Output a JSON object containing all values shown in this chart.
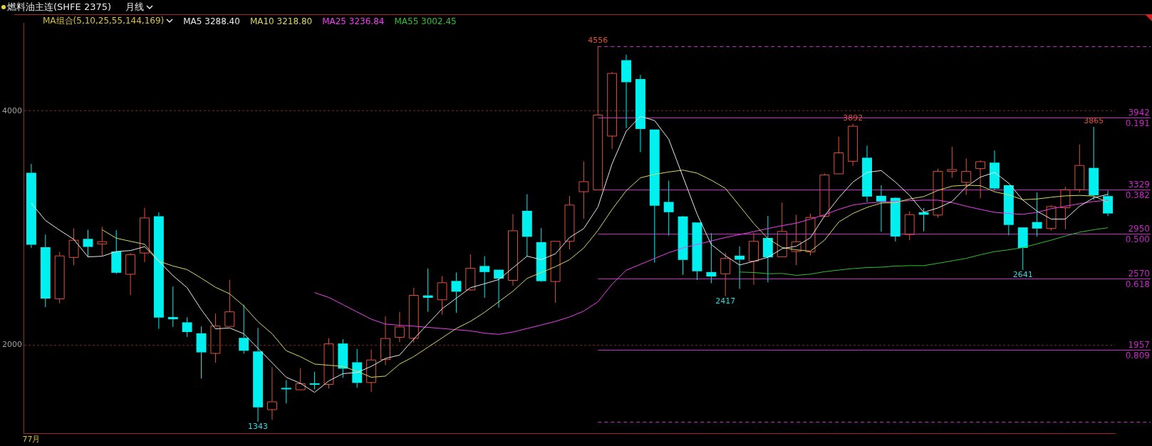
{
  "chart_data": {
    "type": "candlestick",
    "title": "燃料油主连(SHFE 2375)",
    "subtitle": "月线",
    "legend_title": "MA组合(5,10,25,55,144,169)",
    "legend": "top left",
    "grid": "y",
    "categories": [
      "77月",
      null,
      null,
      null,
      null,
      null,
      null,
      null,
      null,
      null,
      null,
      null,
      null,
      null,
      null,
      null,
      null,
      null,
      null,
      null,
      null,
      null,
      null,
      null,
      null,
      null,
      null,
      null,
      null,
      null,
      null,
      null,
      null,
      null,
      null,
      null,
      null,
      null,
      null,
      null,
      null,
      null,
      null,
      null,
      null,
      null,
      null,
      null,
      null,
      null,
      null,
      null,
      null,
      null,
      null,
      null,
      null,
      null,
      null,
      null,
      null,
      null,
      null,
      null,
      null,
      null,
      null,
      null,
      null,
      null,
      null,
      null,
      null,
      null,
      null,
      null,
      null
    ],
    "ohlc": [
      [
        3472,
        3548,
        2830,
        2857
      ],
      [
        2836,
        2944,
        2323,
        2397
      ],
      [
        2397,
        2795,
        2356,
        2764
      ],
      [
        2751,
        2996,
        2681,
        2898
      ],
      [
        2907,
        2985,
        2753,
        2838
      ],
      [
        2867,
        3010,
        2762,
        2886
      ],
      [
        2799,
        2981,
        2607,
        2617
      ],
      [
        2607,
        2785,
        2426,
        2774
      ],
      [
        2789,
        3172,
        2708,
        3089
      ],
      [
        3101,
        3134,
        2137,
        2234
      ],
      [
        2238,
        2499,
        2153,
        2219
      ],
      [
        2193,
        2236,
        2068,
        2110
      ],
      [
        2099,
        2157,
        1712,
        1936
      ],
      [
        1930,
        2267,
        1847,
        2164
      ],
      [
        2161,
        2557,
        2161,
        2286
      ],
      [
        2060,
        2344,
        1925,
        1950
      ],
      [
        1944,
        2145,
        1343,
        1466
      ],
      [
        1449,
        1810,
        1360,
        1516
      ],
      [
        1632,
        1698,
        1499,
        1623
      ],
      [
        1619,
        1801,
        1619,
        1671
      ],
      [
        1671,
        1770,
        1619,
        1660
      ],
      [
        1665,
        2058,
        1627,
        2012
      ],
      [
        2012,
        2048,
        1718,
        1797
      ],
      [
        1851,
        1965,
        1634,
        1675
      ],
      [
        1681,
        1961,
        1598,
        1874
      ],
      [
        1878,
        2244,
        1826,
        2058
      ],
      [
        2068,
        2282,
        2023,
        2157
      ],
      [
        2060,
        2489,
        2020,
        2427
      ],
      [
        2423,
        2653,
        2283,
        2403
      ],
      [
        2389,
        2589,
        2259,
        2535
      ],
      [
        2547,
        2619,
        2275,
        2455
      ],
      [
        2473,
        2775,
        2463,
        2659
      ],
      [
        2675,
        2759,
        2403,
        2623
      ],
      [
        2643,
        2643,
        2319,
        2567
      ],
      [
        2555,
        3119,
        2507,
        2979
      ],
      [
        3147,
        3289,
        2755,
        2925
      ],
      [
        2879,
        2999,
        2539,
        2545
      ],
      [
        2545,
        2889,
        2359,
        2889
      ],
      [
        2889,
        3273,
        2815,
        3199
      ],
      [
        3313,
        3569,
        3079,
        3399
      ],
      [
        3329,
        4556,
        3329,
        3969
      ],
      [
        3789,
        4335,
        3675,
        4325
      ],
      [
        4435,
        4483,
        3855,
        4247
      ],
      [
        4273,
        4309,
        3649,
        3847
      ],
      [
        3843,
        3843,
        2703,
        3191
      ],
      [
        3223,
        3405,
        2935,
        3135
      ],
      [
        3099,
        3103,
        2599,
        2727
      ],
      [
        3047,
        3047,
        2555,
        2629
      ],
      [
        2623,
        2955,
        2527,
        2585
      ],
      [
        2611,
        2789,
        2417,
        2743
      ],
      [
        2763,
        2843,
        2479,
        2729
      ],
      [
        2719,
        2959,
        2515,
        2889
      ],
      [
        2915,
        3103,
        2535,
        2749
      ],
      [
        2757,
        3217,
        2757,
        2974
      ],
      [
        2802,
        3113,
        2682,
        2885
      ],
      [
        2798,
        3123,
        2765,
        3093
      ],
      [
        3103,
        3466,
        3093,
        3456
      ],
      [
        3466,
        3781,
        3466,
        3646
      ],
      [
        3574,
        3892,
        3532,
        3874
      ],
      [
        3601,
        3704,
        3221,
        3269
      ],
      [
        3275,
        3366,
        2968,
        3227
      ],
      [
        3258,
        3263,
        2885,
        2927
      ],
      [
        2947,
        3144,
        2896,
        3117
      ],
      [
        3134,
        3171,
        2972,
        3113
      ],
      [
        3113,
        3507,
        3088,
        3487
      ],
      [
        3487,
        3694,
        3429,
        3503
      ],
      [
        3393,
        3594,
        3283,
        3487
      ],
      [
        3511,
        3580,
        3254,
        3570
      ],
      [
        3559,
        3663,
        3321,
        3337
      ],
      [
        3366,
        3366,
        2937,
        3026
      ],
      [
        3005,
        3005,
        2641,
        2829
      ],
      [
        3051,
        3304,
        2927,
        2995
      ],
      [
        2999,
        3196,
        2978,
        3186
      ],
      [
        3176,
        3352,
        2989,
        3331
      ],
      [
        3331,
        3715,
        3304,
        3538
      ],
      [
        3514,
        3865,
        3242,
        3279
      ],
      [
        3273,
        3321,
        3103,
        3124
      ]
    ],
    "colors": [
      "#00f0f0",
      "#00f0f0",
      "#e0503c",
      "#e0503c",
      "#00f0f0",
      "#e0503c",
      "#00f0f0",
      "#e0503c",
      "#e0503c",
      "#00f0f0",
      "#00f0f0",
      "#00f0f0",
      "#00f0f0",
      "#e0503c",
      "#e0503c",
      "#00f0f0",
      "#00f0f0",
      "#e0503c",
      "#00f0f0",
      "#e0503c",
      "#00f0f0",
      "#e0503c",
      "#00f0f0",
      "#00f0f0",
      "#e0503c",
      "#e0503c",
      "#e0503c",
      "#e0503c",
      "#00f0f0",
      "#e0503c",
      "#00f0f0",
      "#e0503c",
      "#00f0f0",
      "#00f0f0",
      "#e0503c",
      "#00f0f0",
      "#00f0f0",
      "#e0503c",
      "#e0503c",
      "#e0503c",
      "#e0503c",
      "#e0503c",
      "#00f0f0",
      "#00f0f0",
      "#00f0f0",
      "#00f0f0",
      "#00f0f0",
      "#00f0f0",
      "#00f0f0",
      "#e0503c",
      "#00f0f0",
      "#e0503c",
      "#00f0f0",
      "#e0503c",
      "#e0503c",
      "#e0503c",
      "#e0503c",
      "#e0503c",
      "#e0503c",
      "#00f0f0",
      "#00f0f0",
      "#00f0f0",
      "#e0503c",
      "#00f0f0",
      "#e0503c",
      "#e0503c",
      "#e0503c",
      "#e0503c",
      "#00f0f0",
      "#00f0f0",
      "#00f0f0",
      "#00f0f0",
      "#e0503c",
      "#e0503c",
      "#e0503c",
      "#00f0f0",
      "#00f0f0"
    ],
    "series": [
      {
        "type": "line",
        "name": "MA5 3288.40",
        "color": "#e8e8e8",
        "values": [
          3213,
          3064,
          2981,
          2903,
          2753,
          2758,
          2799,
          2807,
          2840,
          2716,
          2592,
          2489,
          2302,
          2137,
          2145,
          2095,
          1971,
          1847,
          1723,
          1671,
          1594,
          1692,
          1754,
          1764,
          1816,
          1884,
          1913,
          2050,
          2180,
          2309,
          2399,
          2489,
          2523,
          2559,
          2659,
          2759,
          2729,
          2779,
          2919,
          2995,
          3179,
          3549,
          3829,
          3955,
          3919,
          3759,
          3439,
          3119,
          2859,
          2763,
          2683,
          2715,
          2749,
          2823,
          2844,
          2916,
          3103,
          3258,
          3393,
          3476,
          3491,
          3393,
          3279,
          3134,
          3171,
          3227,
          3352,
          3435,
          3476,
          3383,
          3238,
          3144,
          3076,
          3076,
          3186,
          3258,
          3288
        ]
      },
      {
        "type": "line",
        "name": "MA10 3218.80",
        "color": "#d8d860",
        "values": [
          null,
          null,
          null,
          null,
          null,
          2985,
          2913,
          2886,
          2861,
          2716,
          2675,
          2644,
          2571,
          2493,
          2437,
          2333,
          2199,
          2095,
          1950,
          1899,
          1836,
          1826,
          1816,
          1774,
          1723,
          1733,
          1836,
          1900,
          1980,
          2060,
          2140,
          2201,
          2279,
          2369,
          2459,
          2569,
          2619,
          2669,
          2729,
          2829,
          2979,
          3159,
          3319,
          3429,
          3459,
          3479,
          3495,
          3469,
          3409,
          3339,
          3189,
          3039,
          2910,
          2833,
          2813,
          2802,
          2896,
          3051,
          3124,
          3176,
          3213,
          3217,
          3248,
          3269,
          3321,
          3358,
          3366,
          3362,
          3310,
          3283,
          3242,
          3248,
          3263,
          3275,
          3279,
          3273,
          3219
        ]
      },
      {
        "type": "line",
        "name": "MA25 3236.84",
        "color": "#f040f0",
        "values": [
          null,
          null,
          null,
          null,
          null,
          null,
          null,
          null,
          null,
          null,
          null,
          null,
          null,
          null,
          null,
          null,
          null,
          null,
          null,
          null,
          2447,
          2406,
          2344,
          2282,
          2220,
          2178,
          2168,
          2160,
          2150,
          2140,
          2130,
          2120,
          2100,
          2090,
          2110,
          2140,
          2170,
          2201,
          2239,
          2289,
          2369,
          2519,
          2639,
          2689,
          2739,
          2789,
          2829,
          2859,
          2889,
          2919,
          2943,
          2969,
          2995,
          3020,
          3041,
          3076,
          3113,
          3159,
          3196,
          3213,
          3221,
          3227,
          3234,
          3238,
          3238,
          3217,
          3186,
          3159,
          3134,
          3124,
          3117,
          3134,
          3165,
          3186,
          3207,
          3227,
          3237
        ]
      },
      {
        "type": "line",
        "name": "MA55 3002.45",
        "color": "#30c030",
        "values": [
          null,
          null,
          null,
          null,
          null,
          null,
          null,
          null,
          null,
          null,
          null,
          null,
          null,
          null,
          null,
          null,
          null,
          null,
          null,
          null,
          null,
          null,
          null,
          null,
          null,
          null,
          null,
          null,
          null,
          null,
          null,
          null,
          null,
          null,
          null,
          null,
          null,
          null,
          null,
          null,
          null,
          null,
          null,
          null,
          null,
          null,
          null,
          null,
          null,
          null,
          2623,
          2619,
          2609,
          2611,
          2595,
          2605,
          2626,
          2640,
          2653,
          2661,
          2665,
          2674,
          2678,
          2678,
          2698,
          2719,
          2740,
          2771,
          2798,
          2813,
          2833,
          2864,
          2896,
          2931,
          2964,
          2985,
          3002
        ]
      }
    ],
    "ylim": [
      1240,
      4755
    ],
    "yticks": [
      2000,
      4000
    ],
    "ref_lines": [
      {
        "axis": "y",
        "value": 4556,
        "label": null,
        "color": "#c828c8",
        "line_style": "dashed"
      },
      {
        "axis": "y",
        "value": 3942,
        "label": "3942",
        "color": "#c828c8",
        "line_style": "solid"
      },
      {
        "axis": "y",
        "value": 3329,
        "label": "3329",
        "color": "#c828c8",
        "line_style": "solid"
      },
      {
        "axis": "y",
        "value": 2950,
        "label": "2950",
        "color": "#c828c8",
        "line_style": "solid"
      },
      {
        "axis": "y",
        "value": 2570,
        "label": "2570",
        "color": "#c828c8",
        "line_style": "solid"
      },
      {
        "axis": "y",
        "value": 1957,
        "label": "1957",
        "color": "#c828c8",
        "line_style": "solid"
      },
      {
        "axis": "y",
        "value": 1343,
        "label": null,
        "color": "#c828c8",
        "line_style": "dashed"
      }
    ],
    "annotations": [
      {
        "text": "4556",
        "y": 4556
      },
      {
        "text": "1343",
        "y": 1343
      },
      {
        "text": "2417",
        "y": 2417
      },
      {
        "text": "3892",
        "y": 3892
      },
      {
        "text": "3865",
        "y": 3865
      },
      {
        "text": "2641",
        "y": 2641
      },
      {
        "text": "0.191",
        "y": 3942
      },
      {
        "text": "0.382",
        "y": 3329
      },
      {
        "text": "0.500",
        "y": 2950
      },
      {
        "text": "0.618",
        "y": 2570
      },
      {
        "text": "0.809",
        "y": 1957
      }
    ]
  }
}
